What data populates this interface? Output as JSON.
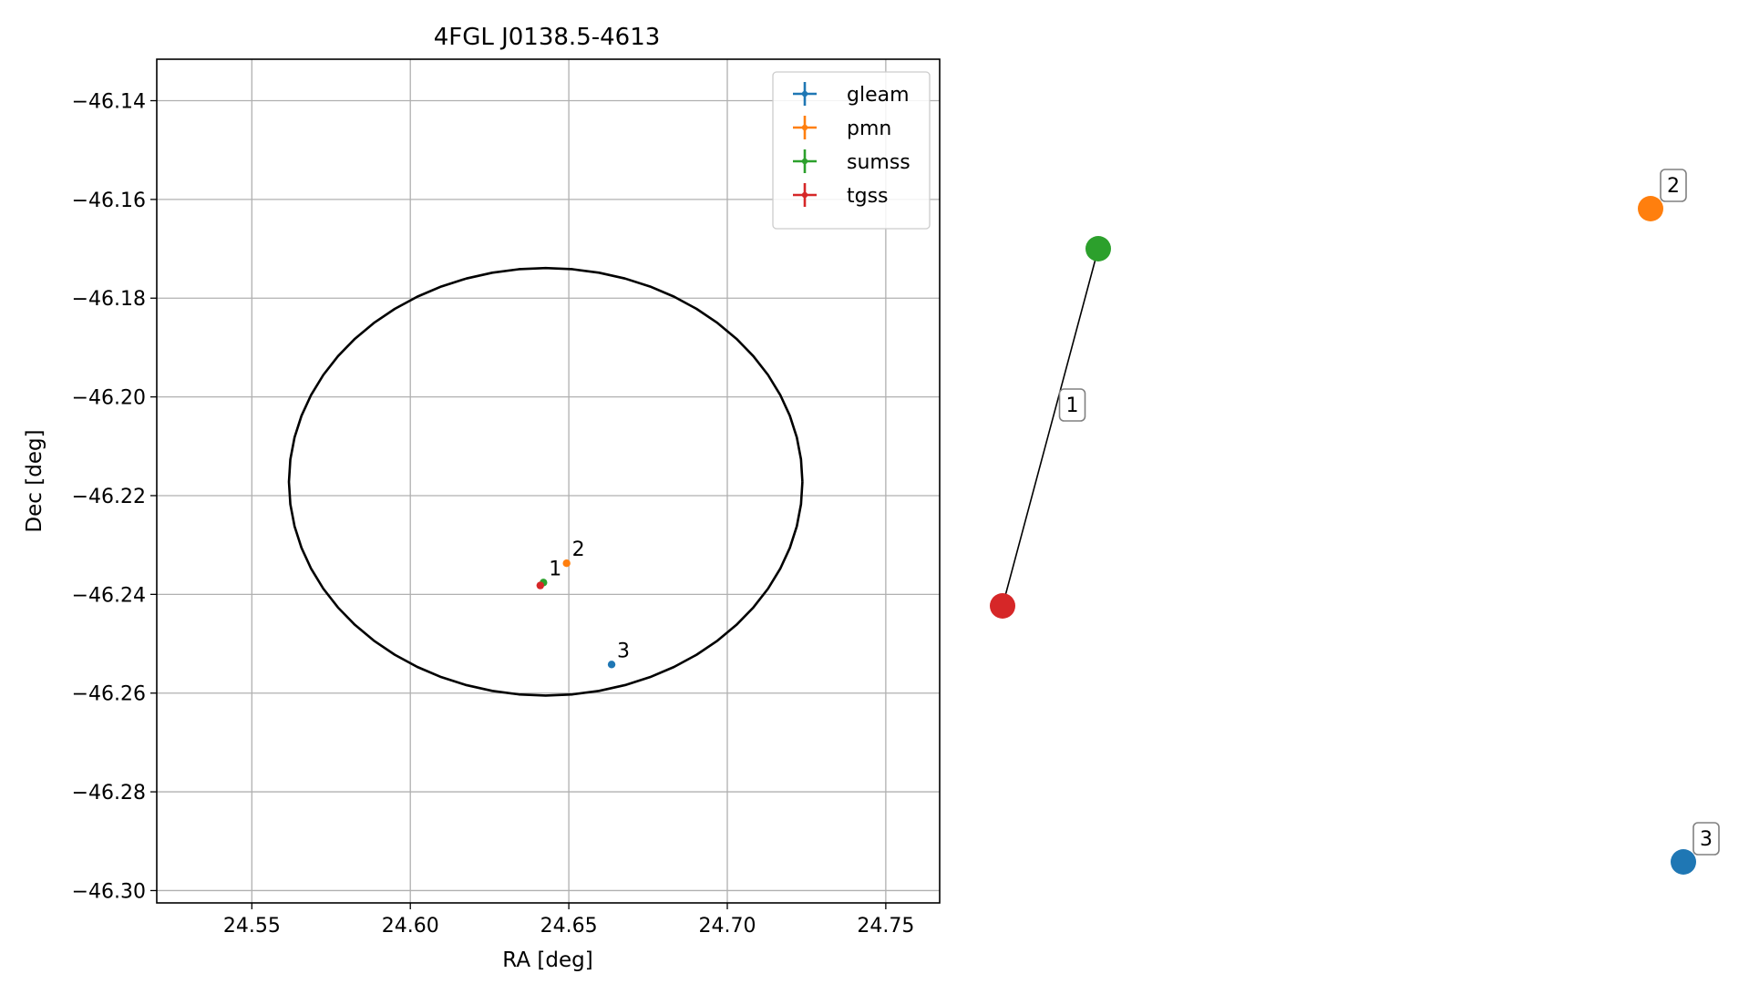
{
  "chart_data": [
    {
      "type": "scatter",
      "title": "4FGL J0138.5-4613",
      "xlabel": "RA [deg]",
      "ylabel": "Dec [deg]",
      "xlim": [
        24.52,
        24.767
      ],
      "ylim": [
        -46.3025,
        -46.1316
      ],
      "xticks": [
        24.55,
        24.6,
        24.65,
        24.7,
        24.75
      ],
      "xtick_labels": [
        "24.55",
        "24.60",
        "24.65",
        "24.70",
        "24.75"
      ],
      "yticks": [
        -46.14,
        -46.16,
        -46.18,
        -46.2,
        -46.22,
        -46.24,
        -46.26,
        -46.28,
        -46.3
      ],
      "ytick_labels": [
        "−46.14",
        "−46.16",
        "−46.18",
        "−46.20",
        "−46.22",
        "−46.24",
        "−46.26",
        "−46.28",
        "−46.30"
      ],
      "grid": true,
      "legend_position": "upper-right",
      "series": [
        {
          "name": "gleam",
          "color": "#1f77b4",
          "points": [
            {
              "x": 24.6635,
              "y": -46.2542
            }
          ]
        },
        {
          "name": "pmn",
          "color": "#ff7f0e",
          "points": [
            {
              "x": 24.6493,
              "y": -46.2337
            }
          ]
        },
        {
          "name": "sumss",
          "color": "#2ca02c",
          "points": [
            {
              "x": 24.642,
              "y": -46.2376
            }
          ]
        },
        {
          "name": "tgss",
          "color": "#d62728",
          "points": [
            {
              "x": 24.641,
              "y": -46.2382
            }
          ]
        }
      ],
      "annotations": [
        {
          "text": "1",
          "x": 24.642,
          "y": -46.2376
        },
        {
          "text": "2",
          "x": 24.6493,
          "y": -46.2337
        },
        {
          "text": "3",
          "x": 24.6635,
          "y": -46.2542
        }
      ],
      "ellipse": {
        "center_ra": 24.6427,
        "center_dec": -46.2172,
        "semi_axis_ra": 0.081,
        "semi_axis_dec": 0.0433,
        "color": "#000000"
      }
    },
    {
      "type": "graph",
      "nodes": [
        {
          "id": "sumss",
          "color": "#2ca02c"
        },
        {
          "id": "tgss",
          "color": "#d62728"
        },
        {
          "id": "pmn",
          "color": "#ff7f0e"
        },
        {
          "id": "gleam",
          "color": "#1f77b4"
        }
      ],
      "edges": [
        {
          "from": "sumss",
          "to": "tgss",
          "label": "1"
        }
      ],
      "node_labels": [
        {
          "node": "pmn",
          "text": "2"
        },
        {
          "node": "gleam",
          "text": "3"
        }
      ]
    }
  ]
}
